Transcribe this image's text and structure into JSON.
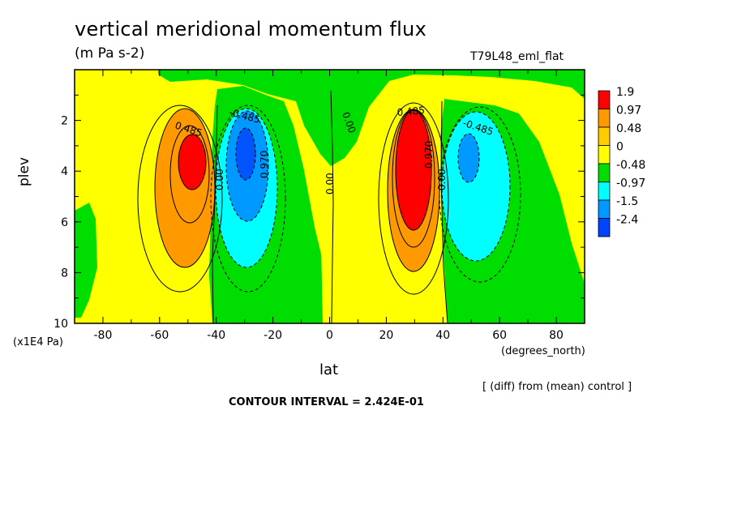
{
  "chart_data": {
    "type": "heatmap",
    "title": "vertical meridional momentum flux",
    "subtitle": "(m Pa s-2)",
    "experiment": "T79L48_eml_flat",
    "xlabel": "lat",
    "xunit": "(degrees_north)",
    "ylabel": "plev",
    "yunit": "(x1E4 Pa)",
    "xlim": [
      -90,
      90
    ],
    "ylim": [
      10,
      0
    ],
    "x_ticks": [
      "-80",
      "-60",
      "-40",
      "-20",
      "0",
      "20",
      "40",
      "60",
      "80"
    ],
    "y_ticks": [
      "2",
      "4",
      "6",
      "8",
      "10"
    ],
    "legend_levels": [
      "1.9",
      "0.97",
      "0.48",
      "0",
      "-0.48",
      "-0.97",
      "-1.5",
      "-2.4"
    ],
    "legend_colors": [
      "#ff0000",
      "#ff9900",
      "#ffcc00",
      "#ffff00",
      "#00dd00",
      "#00ffff",
      "#0099ff",
      "#0044ff"
    ],
    "contour_labels": [
      "0.485",
      "-0.485",
      "0.970",
      "0.00",
      "0.00",
      "0.00",
      "0.485",
      "-0.485",
      "0.970",
      "0.00"
    ],
    "note": "[ (diff) from (mean) control ]",
    "contour_interval": "CONTOUR INTERVAL = 2.424E-01",
    "features": [
      {
        "lat": -50,
        "plev": 3.5,
        "value": 1.9,
        "sign": "positive"
      },
      {
        "lat": -30,
        "plev": 3.5,
        "value": -1.5,
        "sign": "negative"
      },
      {
        "lat": 28,
        "plev": 4.2,
        "value": 1.9,
        "sign": "positive"
      },
      {
        "lat": 47,
        "plev": 3.5,
        "value": -1.5,
        "sign": "negative"
      }
    ]
  }
}
